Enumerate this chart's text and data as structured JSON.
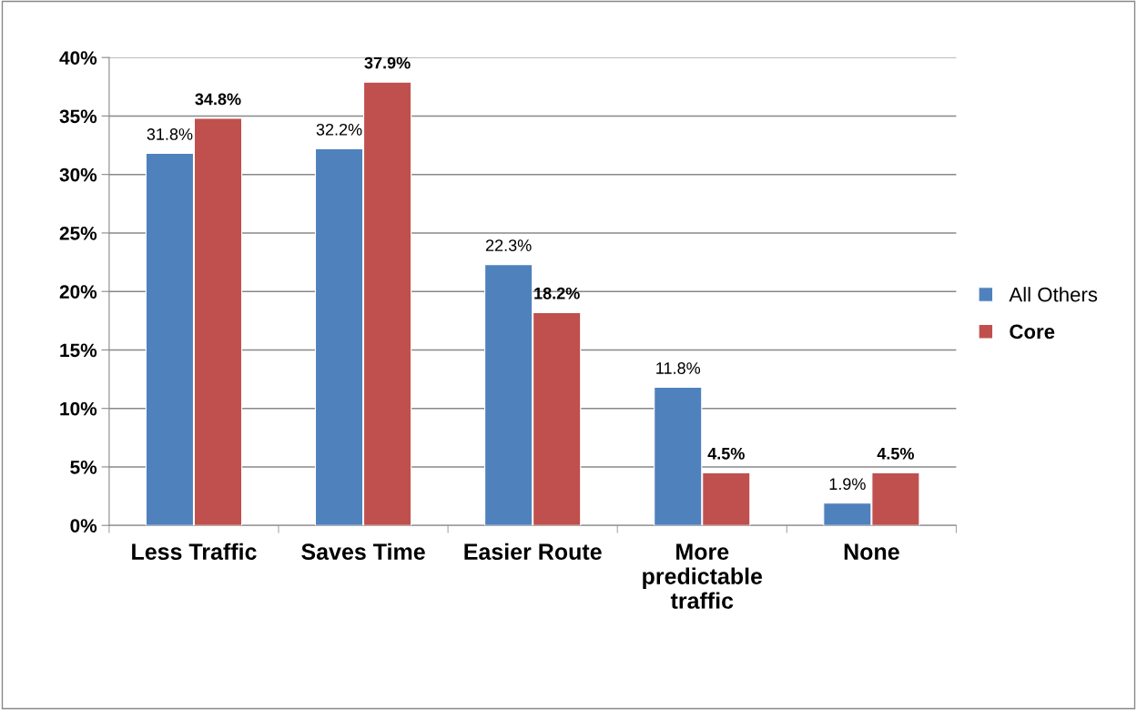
{
  "chart_data": {
    "type": "bar",
    "categories": [
      "Less Traffic",
      "Saves Time",
      "Easier Route",
      "More\npredictable\ntraffic",
      "None"
    ],
    "series": [
      {
        "name": "All Others",
        "color": "#4f81bd",
        "values": [
          31.8,
          32.2,
          22.3,
          11.8,
          1.9
        ],
        "value_labels": [
          "31.8%",
          "32.2%",
          "22.3%",
          "11.8%",
          "1.9%"
        ]
      },
      {
        "name": "Core",
        "color": "#c0504d",
        "values": [
          34.8,
          37.9,
          18.2,
          4.5,
          4.5
        ],
        "value_labels": [
          "34.8%",
          "37.9%",
          "18.2%",
          "4.5%",
          "4.5%"
        ]
      }
    ],
    "ylim": [
      0,
      40
    ],
    "yticks": [
      {
        "value": 0,
        "label": "0%"
      },
      {
        "value": 5,
        "label": "5%"
      },
      {
        "value": 10,
        "label": "10%"
      },
      {
        "value": 15,
        "label": "15%"
      },
      {
        "value": 20,
        "label": "20%"
      },
      {
        "value": 25,
        "label": "25%"
      },
      {
        "value": 30,
        "label": "30%"
      },
      {
        "value": 35,
        "label": "35%"
      },
      {
        "value": 40,
        "label": "40%"
      }
    ],
    "grid": "y",
    "legend": "right"
  }
}
